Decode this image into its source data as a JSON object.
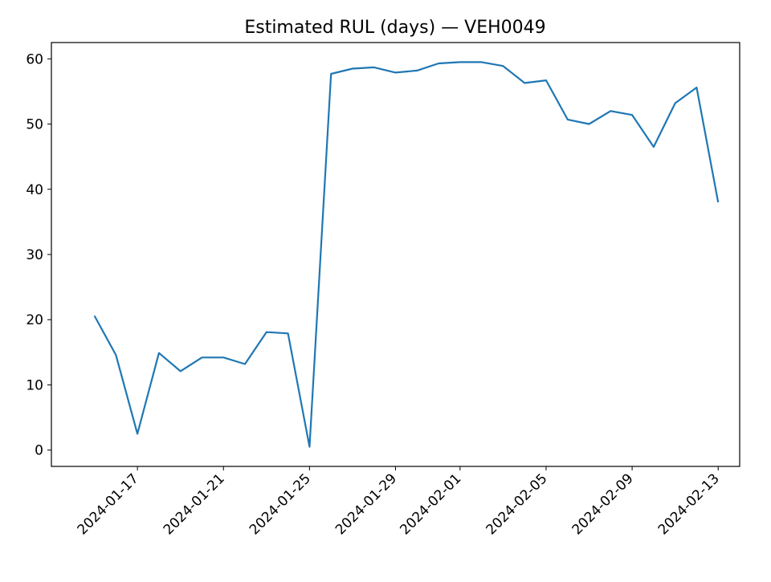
{
  "chart_data": {
    "type": "line",
    "title": "Estimated RUL (days) — VEH0049",
    "xlabel": "",
    "ylabel": "",
    "xlim": [
      "2024-01-13",
      "2024-02-14"
    ],
    "ylim": [
      -2.5,
      62.5
    ],
    "grid": false,
    "legend": "none",
    "x_ticks": [
      "2024-01-17",
      "2024-01-21",
      "2024-01-25",
      "2024-01-29",
      "2024-02-01",
      "2024-02-05",
      "2024-02-09",
      "2024-02-13"
    ],
    "y_ticks": [
      0,
      10,
      20,
      30,
      40,
      50,
      60
    ],
    "series": [
      {
        "color": "#1f77b4",
        "x": [
          "2024-01-15",
          "2024-01-16",
          "2024-01-17",
          "2024-01-18",
          "2024-01-19",
          "2024-01-20",
          "2024-01-21",
          "2024-01-22",
          "2024-01-23",
          "2024-01-24",
          "2024-01-25",
          "2024-01-26",
          "2024-01-27",
          "2024-01-28",
          "2024-01-29",
          "2024-01-30",
          "2024-01-31",
          "2024-02-01",
          "2024-02-02",
          "2024-02-03",
          "2024-02-04",
          "2024-02-05",
          "2024-02-06",
          "2024-02-07",
          "2024-02-08",
          "2024-02-09",
          "2024-02-10",
          "2024-02-11",
          "2024-02-12",
          "2024-02-13"
        ],
        "values": [
          20.6,
          14.6,
          2.5,
          14.9,
          12.1,
          14.2,
          14.2,
          13.2,
          18.1,
          17.9,
          0.5,
          57.7,
          58.5,
          58.7,
          57.9,
          58.2,
          59.3,
          59.5,
          59.5,
          58.9,
          56.3,
          56.7,
          50.7,
          50.0,
          52.0,
          51.4,
          46.5,
          53.2,
          55.6,
          38.0
        ]
      }
    ]
  }
}
